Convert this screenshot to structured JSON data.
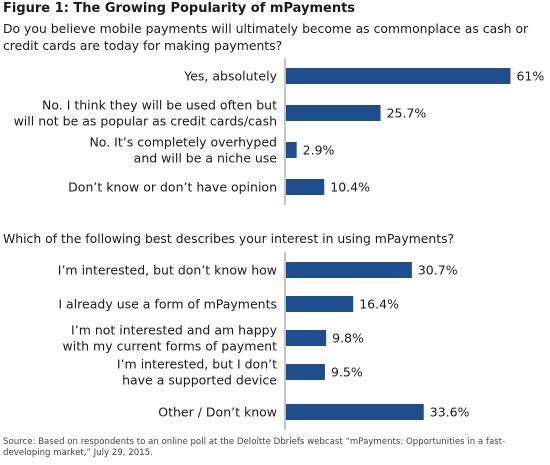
{
  "figure_title": "Figure 1: The Growing Popularity of mPayments",
  "source": "Source: Based on respondents to an online poll at the Deloitte Dbriefs webcast “mPayments: Opportunities in a fast-developing market,” July 29, 2015.",
  "colors": {
    "bar": "#1f4e8c",
    "text": "#1a1a1a",
    "axis": "#888888"
  },
  "chart_data": [
    {
      "type": "bar",
      "orientation": "horizontal",
      "title": "Do you believe mobile payments will ultimately become as commonplace as cash or credit cards are today for making payments?",
      "categories": [
        [
          "Yes, absolutely"
        ],
        [
          "No. I think they will be used often but",
          "will not be as popular as credit cards/cash"
        ],
        [
          "No. It’s completely overhyped",
          "and will be a niche use"
        ],
        [
          "Don’t know or don’t have opinion"
        ]
      ],
      "values": [
        61,
        25.7,
        2.9,
        10.4
      ],
      "value_labels": [
        "61%",
        "25.7%",
        "2.9%",
        "10.4%"
      ],
      "xlim": [
        0,
        100
      ]
    },
    {
      "type": "bar",
      "orientation": "horizontal",
      "title": "Which of the following best describes your interest in using mPayments?",
      "categories": [
        [
          "I’m interested, but don’t know how"
        ],
        [
          "I already use a form of mPayments"
        ],
        [
          "I’m not interested and am happy",
          "with my current forms of payment"
        ],
        [
          "I’m interested, but I don’t",
          "have a supported device"
        ],
        [
          "Other / Don’t know"
        ]
      ],
      "values": [
        30.7,
        16.4,
        9.8,
        9.5,
        33.6
      ],
      "value_labels": [
        "30.7%",
        "16.4%",
        "9.8%",
        "9.5%",
        "33.6%"
      ],
      "xlim": [
        0,
        100
      ]
    }
  ]
}
